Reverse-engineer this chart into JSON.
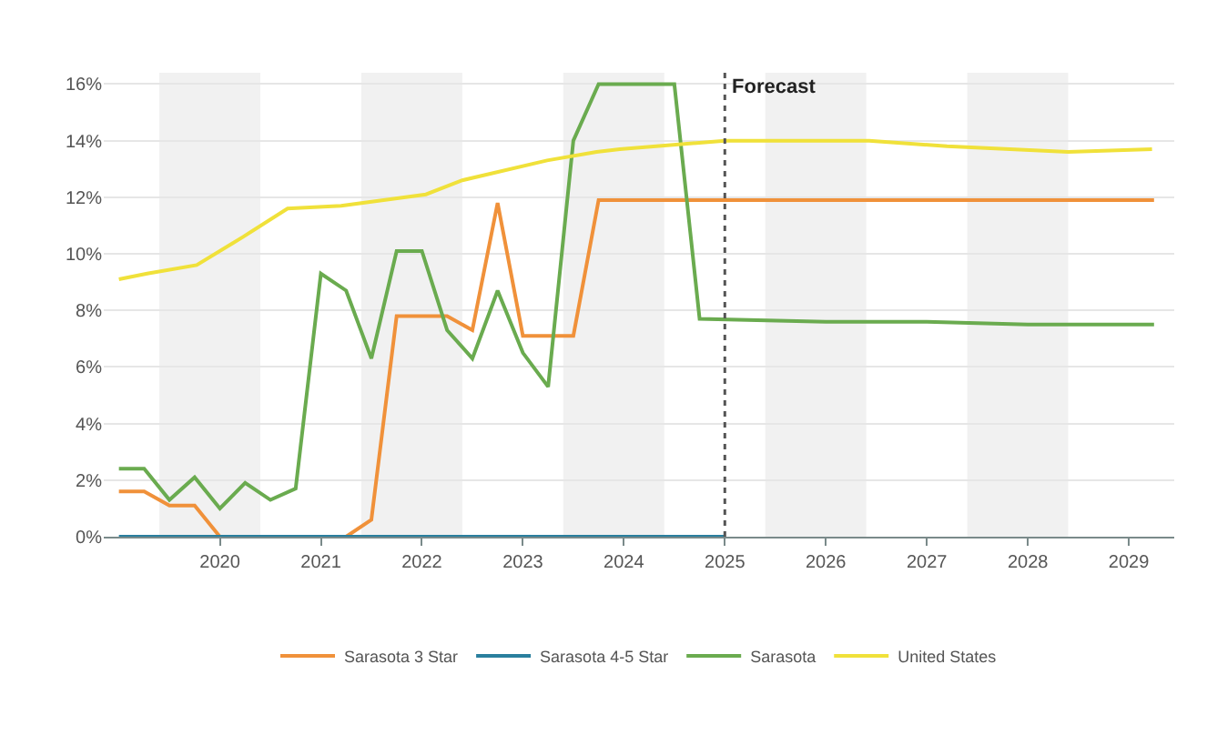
{
  "chart_data": {
    "type": "line",
    "series": [
      {
        "name": "Sarasota 3 Star",
        "color": "#f0913a",
        "x": [
          2019.0,
          2019.25,
          2019.5,
          2019.75,
          2020.0,
          2020.25,
          2020.5,
          2020.75,
          2021.0,
          2021.25,
          2021.5,
          2021.75,
          2022.0,
          2022.25,
          2022.5,
          2022.75,
          2023.0,
          2023.25,
          2023.5,
          2023.75,
          2024.0,
          2025.0,
          2026.0,
          2027.0,
          2028.0,
          2029.25
        ],
        "values": [
          1.6,
          1.6,
          1.1,
          1.1,
          0,
          0,
          0,
          0,
          0,
          0,
          0.6,
          7.8,
          7.8,
          7.8,
          7.3,
          11.8,
          7.1,
          7.1,
          7.1,
          11.9,
          11.9,
          11.9,
          11.9,
          11.9,
          11.9,
          11.9
        ]
      },
      {
        "name": "Sarasota 4-5 Star",
        "color": "#2a7f9e",
        "x": [
          2019.0,
          2025.0
        ],
        "values": [
          0,
          0
        ]
      },
      {
        "name": "Sarasota",
        "color": "#6aab4f",
        "x": [
          2019.0,
          2019.25,
          2019.5,
          2019.75,
          2020.0,
          2020.25,
          2020.5,
          2020.75,
          2021.0,
          2021.25,
          2021.5,
          2021.75,
          2022.0,
          2022.25,
          2022.5,
          2022.75,
          2023.0,
          2023.25,
          2023.5,
          2023.75,
          2024.0,
          2024.25,
          2024.5,
          2024.75,
          2026.0,
          2027.0,
          2028.0,
          2029.25
        ],
        "values": [
          2.4,
          2.4,
          1.3,
          2.1,
          1.0,
          1.9,
          1.3,
          1.7,
          9.3,
          8.7,
          6.3,
          10.1,
          10.1,
          7.3,
          6.3,
          8.7,
          6.5,
          5.3,
          14.0,
          16.0,
          16.0,
          16.0,
          16.0,
          7.7,
          7.6,
          7.6,
          7.5,
          7.5
        ]
      },
      {
        "name": "United States",
        "color": "#f0e13a",
        "x": [
          2019.0,
          2019.28,
          2019.77,
          2020.23,
          2020.67,
          2021.2,
          2022.04,
          2022.4,
          2023.24,
          2023.73,
          2023.96,
          2025.0,
          2026.43,
          2027.2,
          2028.4,
          2029.23
        ],
        "values": [
          9.1,
          9.3,
          9.6,
          10.6,
          11.6,
          11.7,
          12.1,
          12.6,
          13.3,
          13.6,
          13.7,
          14.0,
          14.0,
          13.8,
          13.6,
          13.7
        ]
      }
    ],
    "xlim": [
      2018.85,
      2029.45
    ],
    "xticks": [
      2020,
      2021,
      2022,
      2023,
      2024,
      2025,
      2026,
      2027,
      2028,
      2029
    ],
    "ylim": [
      0,
      16.4
    ],
    "yticks": [
      {
        "value": 0,
        "label": "0%"
      },
      {
        "value": 2,
        "label": "2%"
      },
      {
        "value": 4,
        "label": "4%"
      },
      {
        "value": 6,
        "label": "6%"
      },
      {
        "value": 8,
        "label": "8%"
      },
      {
        "value": 10,
        "label": "10%"
      },
      {
        "value": 12,
        "label": "12%"
      },
      {
        "value": 14,
        "label": "14%"
      },
      {
        "value": 16,
        "label": "16%"
      }
    ],
    "ref_lines": [
      {
        "axis": "x",
        "value": 2025,
        "label": "Forecast",
        "color": "#555555",
        "line_style": "dotted"
      }
    ],
    "bands": [
      {
        "axis": "x",
        "from": 2019.4,
        "to": 2020.4,
        "color": "#f1f1f1"
      },
      {
        "axis": "x",
        "from": 2021.4,
        "to": 2022.4,
        "color": "#f1f1f1"
      },
      {
        "axis": "x",
        "from": 2023.4,
        "to": 2024.4,
        "color": "#f1f1f1"
      },
      {
        "axis": "x",
        "from": 2025.4,
        "to": 2026.4,
        "color": "#f1f1f1"
      },
      {
        "axis": "x",
        "from": 2027.4,
        "to": 2028.4,
        "color": "#f1f1f1"
      }
    ],
    "grid": "y",
    "legend": "bottom",
    "marker": "none",
    "line_style": "solid"
  }
}
